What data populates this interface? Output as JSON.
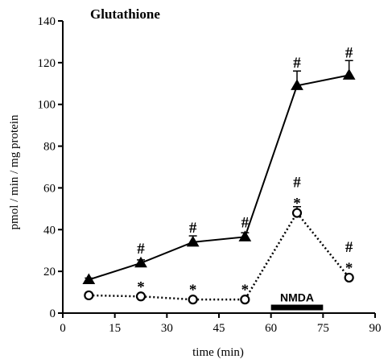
{
  "chart_data": {
    "type": "line",
    "title": "Glutathione",
    "xlabel": "time (min)",
    "ylabel": "pmol / min / mg protein",
    "xlim": [
      0,
      90
    ],
    "ylim": [
      0,
      140
    ],
    "xticks": [
      0,
      15,
      30,
      45,
      60,
      75,
      90
    ],
    "yticks": [
      0,
      20,
      40,
      60,
      80,
      100,
      120,
      140
    ],
    "grid": false,
    "series": [
      {
        "marker": "filled-triangle",
        "line_style": "solid",
        "color": "#000000",
        "x": [
          7.5,
          22.5,
          37.5,
          52.5,
          67.5,
          82.5
        ],
        "y": [
          16,
          24,
          34,
          36.5,
          109,
          114
        ],
        "error": [
          0.8,
          1.5,
          3,
          2,
          7,
          7
        ],
        "annotations": [
          "",
          "#",
          "#",
          "#",
          "#",
          "#"
        ]
      },
      {
        "marker": "open-circle",
        "line_style": "dotted",
        "color": "#000000",
        "x": [
          7.5,
          22.5,
          37.5,
          52.5,
          67.5,
          82.5
        ],
        "y": [
          8.5,
          8,
          6.5,
          6.5,
          48,
          17
        ],
        "error": [
          0.5,
          0.5,
          0.5,
          0.5,
          3,
          0.5
        ],
        "annotations": [
          "",
          "*",
          "*",
          "*",
          "#*",
          "#*"
        ]
      }
    ],
    "stimulus_bar": {
      "label": "NMDA",
      "x_start": 60,
      "x_end": 75,
      "y": 2.5
    }
  }
}
